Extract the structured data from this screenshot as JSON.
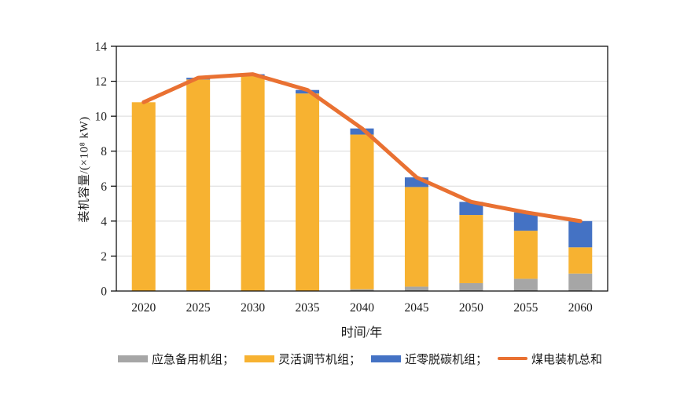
{
  "chart_data": {
    "type": "bar",
    "subtype": "stacked-bars-with-total-line",
    "title": "",
    "categories": [
      "2020",
      "2025",
      "2030",
      "2035",
      "2040",
      "2045",
      "2050",
      "2055",
      "2060"
    ],
    "series": [
      {
        "name": "应急备用机组",
        "color": "#A6A6A6",
        "values": [
          0,
          0,
          0,
          0,
          0.1,
          0.25,
          0.45,
          0.7,
          1.0
        ]
      },
      {
        "name": "灵活调节机组",
        "color": "#F7B231",
        "values": [
          10.8,
          12.1,
          12.3,
          11.3,
          8.85,
          5.7,
          3.9,
          2.75,
          1.5
        ]
      },
      {
        "name": "近零脱碳机组",
        "color": "#4472C4",
        "values": [
          0,
          0.1,
          0.1,
          0.2,
          0.35,
          0.55,
          0.75,
          1.05,
          1.5
        ]
      }
    ],
    "line_series": {
      "name": "煤电装机总和",
      "color": "#E97132",
      "values": [
        10.8,
        12.2,
        12.4,
        11.5,
        9.3,
        6.5,
        5.1,
        4.5,
        4.0
      ]
    },
    "xlabel": "时间/年",
    "ylabel": "装机容量/(×10⁸ kW)",
    "ylim": [
      0,
      14
    ],
    "yticks": [
      0,
      2,
      4,
      6,
      8,
      10,
      12,
      14
    ],
    "grid": true,
    "gridline_color": "#D9D9D9",
    "axis_color": "#000000",
    "legend_position": "bottom"
  },
  "legend": {
    "items": [
      {
        "label": "应急备用机组；",
        "type": "box",
        "color": "#A6A6A6"
      },
      {
        "label": "灵活调节机组；",
        "type": "box",
        "color": "#F7B231"
      },
      {
        "label": "近零脱碳机组；",
        "type": "box",
        "color": "#4472C4"
      },
      {
        "label": "煤电装机总和",
        "type": "line",
        "color": "#E97132"
      }
    ]
  }
}
